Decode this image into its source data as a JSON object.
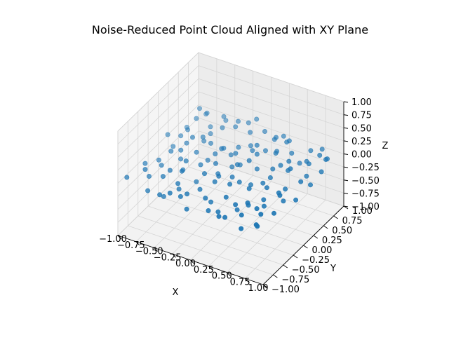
{
  "chart_data": {
    "type": "scatter",
    "projection": "3d",
    "title": "Noise-Reduced Point Cloud Aligned with XY Plane",
    "xlabel": "X",
    "ylabel": "Y",
    "zlabel": "Z",
    "xlim": [
      -1,
      1
    ],
    "ylim": [
      -1,
      1
    ],
    "zlim": [
      -1,
      1
    ],
    "x_ticks": [
      "−1.00",
      "−0.75",
      "−0.50",
      "−0.25",
      "0.00",
      "0.25",
      "0.50",
      "0.75",
      "1.00"
    ],
    "y_ticks": [
      "−1.00",
      "−0.75",
      "−0.50",
      "−0.25",
      "0.00",
      "0.25",
      "0.50",
      "0.75",
      "1.00"
    ],
    "z_ticks": [
      "−1.00",
      "−0.75",
      "−0.50",
      "−0.25",
      "0.00",
      "0.25",
      "0.50",
      "0.75",
      "1.00"
    ],
    "grid": true,
    "color": "#1f77b4",
    "points": [
      [
        -0.95,
        0.62,
        -0.12
      ],
      [
        -0.9,
        0.38,
        -0.08
      ],
      [
        -0.88,
        -0.2,
        -0.1
      ],
      [
        -0.85,
        0.1,
        -0.05
      ],
      [
        -0.82,
        -0.55,
        -0.12
      ],
      [
        -0.8,
        0.85,
        0.05
      ],
      [
        -0.78,
        0.55,
        0.18
      ],
      [
        -0.76,
        -0.35,
        -0.03
      ],
      [
        -0.72,
        0.2,
        0.0
      ],
      [
        -0.7,
        -0.8,
        -0.15
      ],
      [
        -0.68,
        0.72,
        -0.06
      ],
      [
        -0.66,
        -0.05,
        0.08
      ],
      [
        -0.62,
        0.45,
        -0.1
      ],
      [
        -0.6,
        -0.6,
        0.02
      ],
      [
        -0.58,
        0.92,
        -0.04
      ],
      [
        -0.55,
        0.3,
        0.12
      ],
      [
        -0.52,
        -0.25,
        -0.08
      ],
      [
        -0.5,
        0.05,
        0.04
      ],
      [
        -0.48,
        -0.9,
        -0.05
      ],
      [
        -0.46,
        0.62,
        0.1
      ],
      [
        -0.44,
        -0.42,
        0.06
      ],
      [
        -0.4,
        0.15,
        -0.14
      ],
      [
        -0.38,
        0.8,
        0.02
      ],
      [
        -0.36,
        -0.1,
        -0.02
      ],
      [
        -0.34,
        -0.7,
        0.08
      ],
      [
        -0.32,
        0.4,
        -0.06
      ],
      [
        -0.3,
        0.98,
        0.0
      ],
      [
        -0.28,
        -0.35,
        -0.12
      ],
      [
        -0.25,
        0.22,
        0.1
      ],
      [
        -0.22,
        -0.85,
        0.0
      ],
      [
        -0.2,
        0.55,
        -0.1
      ],
      [
        -0.18,
        -0.05,
        0.05
      ],
      [
        -0.15,
        0.75,
        0.06
      ],
      [
        -0.12,
        -0.55,
        -0.04
      ],
      [
        -0.1,
        0.3,
        0.02
      ],
      [
        -0.08,
        -0.95,
        -0.1
      ],
      [
        -0.05,
        0.12,
        -0.08
      ],
      [
        -0.02,
        0.88,
        0.04
      ],
      [
        0.0,
        -0.3,
        0.08
      ],
      [
        0.02,
        0.5,
        -0.02
      ],
      [
        0.05,
        -0.72,
        0.0
      ],
      [
        0.08,
        0.02,
        0.1
      ],
      [
        0.1,
        0.68,
        -0.12
      ],
      [
        0.12,
        -0.18,
        0.03
      ],
      [
        0.15,
        0.38,
        0.06
      ],
      [
        0.18,
        -0.88,
        -0.06
      ],
      [
        0.2,
        0.95,
        0.0
      ],
      [
        0.22,
        -0.42,
        0.12
      ],
      [
        0.25,
        0.2,
        -0.04
      ],
      [
        0.28,
        -0.62,
        0.05
      ],
      [
        0.3,
        0.6,
        0.02
      ],
      [
        0.32,
        -0.08,
        -0.1
      ],
      [
        0.35,
        0.82,
        0.08
      ],
      [
        0.38,
        -0.98,
        0.0
      ],
      [
        0.4,
        0.32,
        -0.06
      ],
      [
        0.42,
        -0.3,
        0.04
      ],
      [
        0.45,
        0.7,
        -0.02
      ],
      [
        0.48,
        -0.75,
        0.1
      ],
      [
        0.5,
        0.08,
        0.0
      ],
      [
        0.52,
        -0.5,
        -0.08
      ],
      [
        0.55,
        0.45,
        0.06
      ],
      [
        0.58,
        -0.15,
        0.02
      ],
      [
        0.6,
        0.9,
        -0.05
      ],
      [
        0.62,
        -0.85,
        0.04
      ],
      [
        0.65,
        0.25,
        0.08
      ],
      [
        0.68,
        -0.4,
        -0.1
      ],
      [
        0.7,
        0.62,
        0.0
      ],
      [
        0.72,
        -0.65,
        0.06
      ],
      [
        0.75,
        0.0,
        -0.04
      ],
      [
        0.78,
        0.8,
        0.02
      ],
      [
        0.8,
        -0.25,
        0.1
      ],
      [
        0.82,
        0.4,
        -0.06
      ],
      [
        0.85,
        -0.9,
        0.0
      ],
      [
        0.88,
        0.15,
        0.05
      ],
      [
        0.9,
        -0.55,
        -0.02
      ],
      [
        0.92,
        0.7,
        0.08
      ],
      [
        0.95,
        -0.1,
        -0.08
      ],
      [
        0.97,
        0.5,
        0.02
      ],
      [
        -0.93,
        -0.45,
        0.0
      ],
      [
        -0.87,
        0.95,
        -0.08
      ],
      [
        -0.74,
        -0.15,
        0.1
      ],
      [
        -0.64,
        0.65,
        -0.12
      ],
      [
        -0.57,
        -0.48,
        0.06
      ],
      [
        -0.47,
        0.35,
        0.0
      ],
      [
        -0.37,
        -0.62,
        -0.1
      ],
      [
        -0.27,
        0.1,
        0.08
      ],
      [
        -0.17,
        -0.78,
        0.02
      ],
      [
        -0.07,
        0.62,
        -0.06
      ],
      [
        0.03,
        -0.45,
        0.1
      ],
      [
        0.13,
        0.85,
        -0.02
      ],
      [
        0.23,
        -0.2,
        0.0
      ],
      [
        0.33,
        0.52,
        0.06
      ],
      [
        0.43,
        -0.92,
        -0.04
      ],
      [
        0.53,
        0.28,
        0.1
      ],
      [
        0.63,
        -0.32,
        -0.06
      ],
      [
        0.73,
        0.95,
        0.0
      ],
      [
        0.83,
        -0.75,
        0.08
      ],
      [
        0.93,
        0.3,
        -0.1
      ],
      [
        -0.98,
        0.2,
        0.04
      ],
      [
        -0.69,
        0.0,
        -0.14
      ],
      [
        -0.41,
        0.92,
        0.02
      ],
      [
        -0.11,
        -0.12,
        -0.06
      ],
      [
        0.17,
        0.15,
        0.12
      ],
      [
        0.47,
        -0.05,
        -0.02
      ],
      [
        0.77,
        0.55,
        0.04
      ],
      [
        -0.83,
        0.72,
        0.22
      ],
      [
        -0.53,
        0.78,
        0.16
      ],
      [
        -0.23,
        0.42,
        -0.16
      ],
      [
        0.07,
        -0.62,
        -0.14
      ],
      [
        0.37,
        0.72,
        0.14
      ],
      [
        0.67,
        -0.95,
        -0.12
      ],
      [
        0.87,
        -0.35,
        0.16
      ],
      [
        -0.79,
        -0.7,
        0.14
      ],
      [
        -0.49,
        -0.78,
        -0.18
      ],
      [
        -0.19,
        0.98,
        0.12
      ],
      [
        0.11,
        0.45,
        0.16
      ],
      [
        0.41,
        -0.58,
        -0.16
      ],
      [
        0.71,
        0.2,
        0.18
      ],
      [
        0.91,
        -0.98,
        0.06
      ],
      [
        -0.96,
        -0.85,
        0.02
      ],
      [
        -0.31,
        -0.95,
        0.1
      ],
      [
        0.27,
        -0.8,
        -0.1
      ],
      [
        0.57,
        0.68,
        -0.14
      ],
      [
        0.84,
        0.88,
        -0.08
      ],
      [
        -0.61,
        0.15,
        0.2
      ],
      [
        -0.01,
        0.25,
        -0.12
      ],
      [
        0.61,
        -0.68,
        0.14
      ],
      [
        -0.45,
        -0.3,
        0.16
      ],
      [
        0.19,
        0.78,
        0.1
      ],
      [
        0.79,
        -0.12,
        -0.16
      ],
      [
        -0.86,
        0.48,
        -0.02
      ],
      [
        -0.14,
        -0.4,
        0.14
      ]
    ]
  }
}
